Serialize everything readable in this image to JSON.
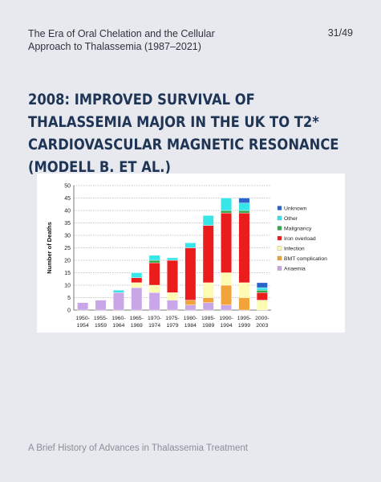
{
  "header": {
    "title": "The Era of Oral Chelation and the Cellular\nApproach to Thalassemia  (1987–2021)",
    "page": "31/49"
  },
  "slide": {
    "title": "2008: Improved survival of thalassemia major in the UK to T2* cardiovascular magnetic resonance (Modell B. et al.)"
  },
  "footer": {
    "text": "A Brief History of Advances in Thalassemia Treatment"
  },
  "chart_data": {
    "type": "bar",
    "stacked": true,
    "ylabel": "Number of Deaths",
    "xlabel": "",
    "ylim": [
      0,
      50
    ],
    "yticks": [
      0,
      5,
      10,
      15,
      20,
      25,
      30,
      35,
      40,
      45,
      50
    ],
    "grid": true,
    "legend_position": "right",
    "categories": [
      [
        "1950-",
        "1954"
      ],
      [
        "1955-",
        "1959"
      ],
      [
        "1960-",
        "1964"
      ],
      [
        "1965-",
        "1969"
      ],
      [
        "1970-",
        "1974"
      ],
      [
        "1975-",
        "1979"
      ],
      [
        "1980-",
        "1984"
      ],
      [
        "1985-",
        "1989"
      ],
      [
        "1990-",
        "1994"
      ],
      [
        "1995-",
        "1999"
      ],
      [
        "2000-",
        "2003"
      ]
    ],
    "series": [
      {
        "name": "Anaemia",
        "color": "#c9a6e8",
        "values": [
          3,
          4,
          7,
          9,
          7,
          4,
          2,
          3,
          2,
          0,
          0
        ]
      },
      {
        "name": "BMT complication",
        "color": "#f2a33a",
        "values": [
          0,
          0,
          0,
          0,
          0,
          0,
          2,
          2,
          8,
          5,
          0
        ]
      },
      {
        "name": "Infection",
        "color": "#fbfbb4",
        "values": [
          0,
          0,
          0,
          2,
          3,
          3,
          0,
          6,
          5,
          6,
          4
        ]
      },
      {
        "name": "Iron overload",
        "color": "#ea1c1c",
        "values": [
          0,
          0,
          0,
          2,
          9,
          13,
          21,
          23,
          24,
          28,
          3
        ]
      },
      {
        "name": "Malignancy",
        "color": "#2fa84f",
        "values": [
          0,
          0,
          0,
          0,
          1,
          0,
          0,
          0,
          1,
          1,
          1
        ]
      },
      {
        "name": "Other",
        "color": "#38e6ea",
        "values": [
          0,
          0,
          1,
          2,
          2,
          1,
          2,
          4,
          5,
          3,
          1
        ]
      },
      {
        "name": "Unknown",
        "color": "#2c63c9",
        "values": [
          0,
          0,
          0,
          0,
          0,
          0,
          0,
          0,
          0,
          2,
          2
        ]
      }
    ]
  }
}
